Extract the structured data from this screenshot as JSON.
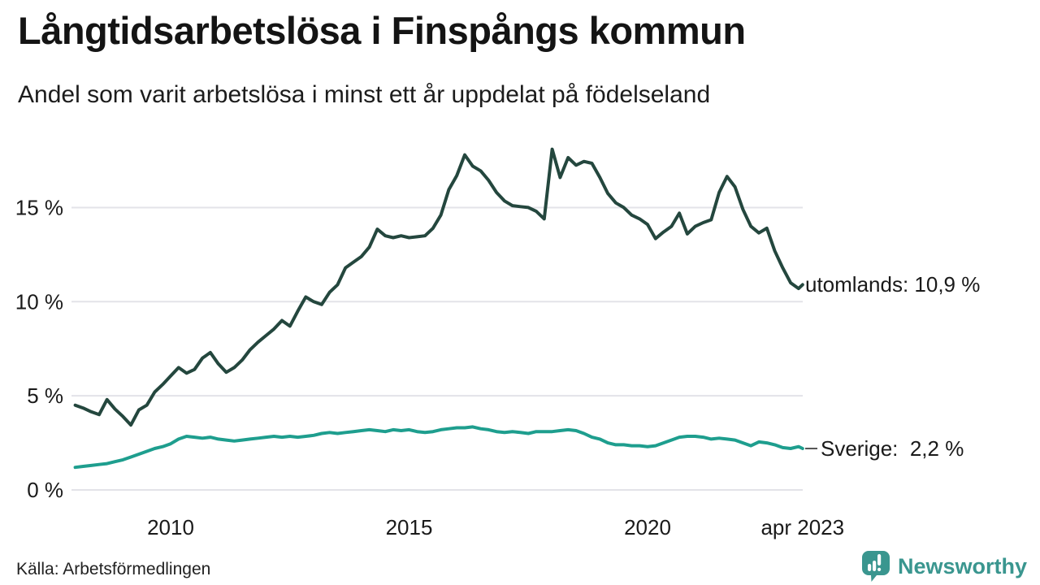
{
  "header": {
    "title": "Långtidsarbetslösa i Finspångs kommun",
    "subtitle": "Andel som varit arbetslösa i minst ett år uppdelat på födelseland"
  },
  "chart_data": {
    "type": "line",
    "title": "Långtidsarbetslösa i Finspångs kommun",
    "subtitle": "Andel som varit arbetslösa i minst ett år uppdelat på födelseland",
    "unit": "%",
    "x_start": 2008.0,
    "x_step": 0.166667,
    "x_end": 2023.25,
    "ylim": [
      0,
      18.6
    ],
    "grid": true,
    "grid_color": "#e3e3e8",
    "yticks": [
      {
        "value": 0,
        "label": "0 %"
      },
      {
        "value": 5,
        "label": "5 %"
      },
      {
        "value": 10,
        "label": "10 %"
      },
      {
        "value": 15,
        "label": "15 %"
      }
    ],
    "xticks": [
      {
        "year": 2010,
        "label": "2010"
      },
      {
        "year": 2015,
        "label": "2015"
      },
      {
        "year": 2020,
        "label": "2020"
      },
      {
        "year": 2023.25,
        "label": "apr 2023"
      }
    ],
    "series": [
      {
        "name": "utomlands",
        "color": "#24473e",
        "end_label": "utomlands: 10,9 %",
        "last_value_label": "10,9 %",
        "tick_dash": false,
        "values": [
          4.5,
          4.35,
          4.15,
          4.0,
          4.8,
          4.3,
          3.9,
          3.45,
          4.25,
          4.5,
          5.2,
          5.6,
          6.05,
          6.5,
          6.2,
          6.4,
          7.0,
          7.3,
          6.7,
          6.25,
          6.5,
          6.9,
          7.45,
          7.85,
          8.2,
          8.55,
          9.0,
          8.7,
          9.5,
          10.25,
          10.0,
          9.85,
          10.5,
          10.9,
          11.8,
          12.1,
          12.4,
          12.9,
          13.85,
          13.5,
          13.4,
          13.5,
          13.4,
          13.45,
          13.5,
          13.9,
          14.6,
          15.95,
          16.7,
          17.8,
          17.2,
          16.95,
          16.45,
          15.8,
          15.35,
          15.1,
          15.05,
          15.0,
          14.8,
          14.4,
          18.1,
          16.6,
          17.65,
          17.25,
          17.45,
          17.35,
          16.6,
          15.75,
          15.25,
          15.0,
          14.6,
          14.4,
          14.1,
          13.35,
          13.7,
          14.0,
          14.7,
          13.6,
          14.0,
          14.2,
          14.35,
          15.8,
          16.65,
          16.1,
          14.9,
          14.0,
          13.65,
          13.9,
          12.7,
          11.8,
          11.0,
          10.7,
          10.9
        ]
      },
      {
        "name": "Sverige",
        "color": "#1e9e8e",
        "end_label": "Sverige:  2,2 %",
        "last_value_label": "2,2 %",
        "tick_dash": true,
        "values": [
          1.2,
          1.25,
          1.3,
          1.35,
          1.4,
          1.5,
          1.6,
          1.75,
          1.9,
          2.05,
          2.2,
          2.3,
          2.45,
          2.7,
          2.85,
          2.8,
          2.75,
          2.8,
          2.7,
          2.65,
          2.6,
          2.65,
          2.7,
          2.75,
          2.8,
          2.85,
          2.8,
          2.85,
          2.8,
          2.85,
          2.9,
          3.0,
          3.05,
          3.0,
          3.05,
          3.1,
          3.15,
          3.2,
          3.15,
          3.1,
          3.2,
          3.15,
          3.2,
          3.1,
          3.05,
          3.1,
          3.2,
          3.25,
          3.3,
          3.3,
          3.35,
          3.25,
          3.2,
          3.1,
          3.05,
          3.1,
          3.05,
          3.0,
          3.1,
          3.1,
          3.1,
          3.15,
          3.2,
          3.15,
          3.0,
          2.8,
          2.7,
          2.5,
          2.4,
          2.4,
          2.35,
          2.35,
          2.3,
          2.35,
          2.5,
          2.65,
          2.8,
          2.85,
          2.85,
          2.8,
          2.7,
          2.75,
          2.7,
          2.65,
          2.5,
          2.35,
          2.55,
          2.5,
          2.4,
          2.25,
          2.2,
          2.3,
          2.2
        ]
      }
    ]
  },
  "footer": {
    "source": "Källa: Arbetsförmedlingen",
    "brand": "Newsworthy",
    "brand_color": "#3a968f"
  }
}
